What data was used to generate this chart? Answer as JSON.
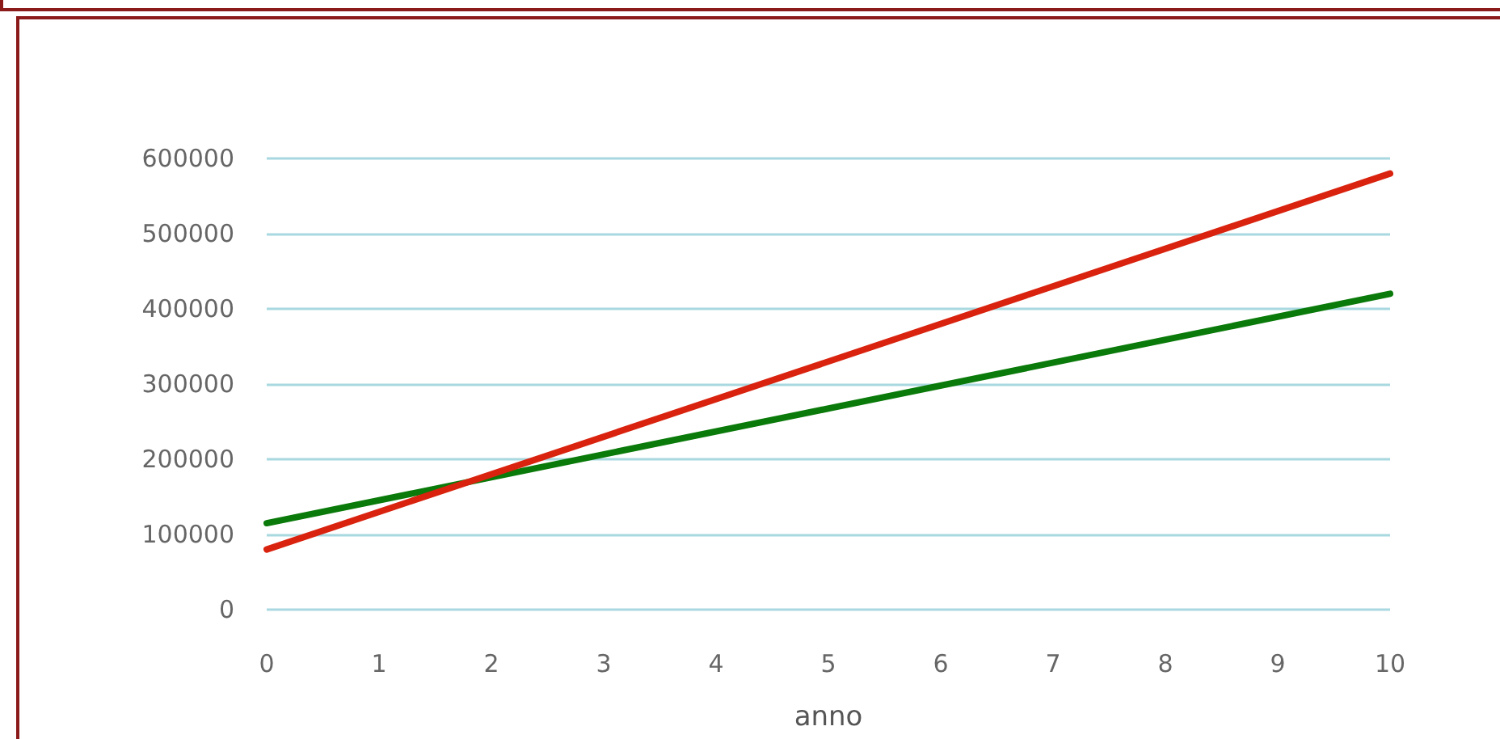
{
  "chart_data": {
    "type": "line",
    "xlabel": "anno",
    "x": [
      0,
      10
    ],
    "series": [
      {
        "color": "#0a7a0a",
        "values": [
          115000,
          420000
        ]
      },
      {
        "color": "#d9230f",
        "values": [
          80000,
          580000
        ]
      }
    ],
    "xlim": [
      0,
      10
    ],
    "xticks": [
      0,
      1,
      2,
      3,
      4,
      5,
      6,
      7,
      8,
      9,
      10
    ],
    "ylim": [
      0,
      600000
    ],
    "yticks": [
      0,
      100000,
      200000,
      300000,
      400000,
      500000,
      600000
    ],
    "grid": "y",
    "marker": "none",
    "line_style": "solid"
  }
}
